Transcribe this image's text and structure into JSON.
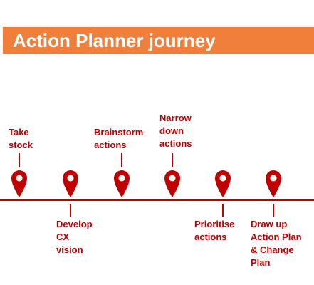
{
  "title": "Action Planner journey",
  "colors": {
    "banner": "#f07f3c",
    "title_text": "#ffffff",
    "accent": "#c00000"
  },
  "icons": [
    "location-pin-icon"
  ],
  "steps": [
    {
      "label": "Take\nstock"
    },
    {
      "label": "Develop\nCX\nvision"
    },
    {
      "label": "Brainstorm\nactions"
    },
    {
      "label": "Narrow\ndown\nactions"
    },
    {
      "label": "Prioritise\nactions"
    },
    {
      "label": "Draw up\nAction Plan\n& Change\nPlan"
    }
  ]
}
